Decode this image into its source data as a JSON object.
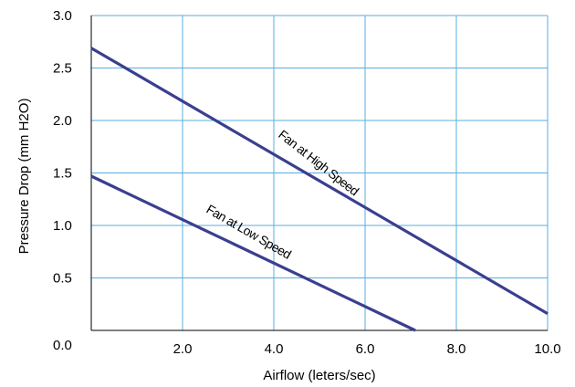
{
  "chart_data": {
    "type": "line",
    "title": "",
    "xlabel": "Airflow (leters/sec)",
    "ylabel": "Pressure Drop (mm H2O)",
    "xlim": [
      0,
      10
    ],
    "ylim": [
      0,
      3
    ],
    "grid": true,
    "x_ticks": [
      "2.0",
      "4.0",
      "6.0",
      "8.0",
      "10.0"
    ],
    "y_ticks": [
      "0.0",
      "0.5",
      "1.0",
      "1.5",
      "2.0",
      "2.5",
      "3.0"
    ],
    "series": [
      {
        "name": "Fan at High Speed",
        "x": [
          0,
          10
        ],
        "y": [
          2.69,
          0.16
        ]
      },
      {
        "name": "Fan at Low Speed",
        "x": [
          0,
          7.1
        ],
        "y": [
          1.47,
          0.0
        ]
      }
    ],
    "colors": {
      "line": "#3a3f8f",
      "grid": "#5aaee0",
      "axis": "#000000"
    }
  }
}
